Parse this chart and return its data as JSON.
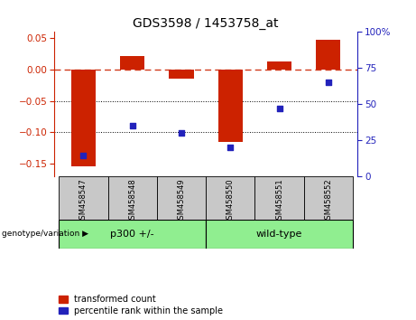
{
  "title": "GDS3598 / 1453758_at",
  "samples": [
    "GSM458547",
    "GSM458548",
    "GSM458549",
    "GSM458550",
    "GSM458551",
    "GSM458552"
  ],
  "red_bars": [
    -0.155,
    0.022,
    -0.015,
    -0.115,
    0.013,
    0.048
  ],
  "blue_dots": [
    14,
    35,
    30,
    20,
    47,
    65
  ],
  "ylim_left": [
    -0.17,
    0.06
  ],
  "ylim_right": [
    0,
    100
  ],
  "yticks_left": [
    -0.15,
    -0.1,
    -0.05,
    0.0,
    0.05
  ],
  "yticks_right": [
    0,
    25,
    50,
    75,
    100
  ],
  "dotted_lines": [
    -0.05,
    -0.1
  ],
  "bar_color": "#cc2200",
  "dot_color": "#2222bb",
  "green_color": "#90EE90",
  "gray_color": "#c8c8c8",
  "bar_width": 0.5,
  "legend_items": [
    "transformed count",
    "percentile rank within the sample"
  ]
}
